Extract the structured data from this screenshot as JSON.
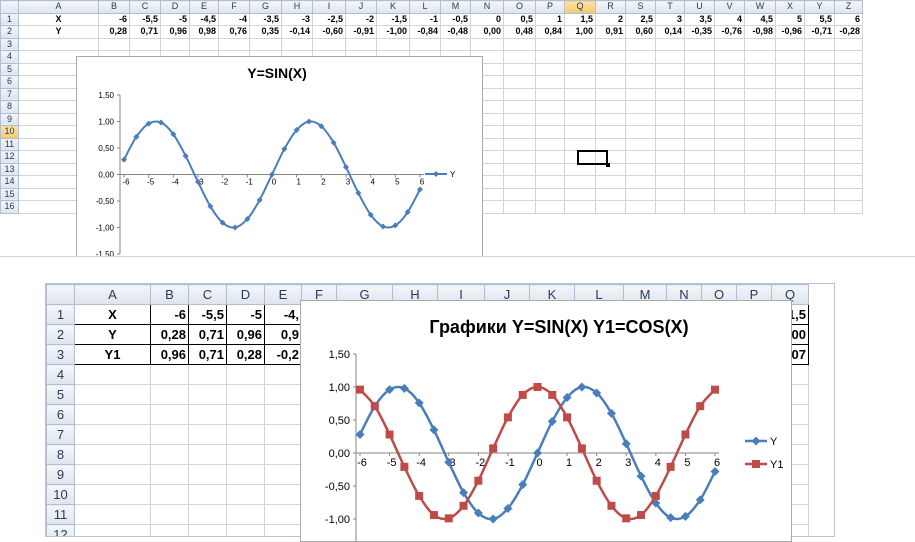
{
  "sheet1": {
    "columns": [
      "A",
      "B",
      "C",
      "D",
      "E",
      "F",
      "G",
      "H",
      "I",
      "J",
      "K",
      "L",
      "M",
      "N",
      "O",
      "P",
      "Q",
      "R",
      "S",
      "T",
      "U",
      "V",
      "W",
      "X",
      "Y",
      "Z"
    ],
    "selected_column": "Q",
    "selected_row": "10",
    "rows": [
      "1",
      "2",
      "3",
      "4",
      "5",
      "6",
      "7",
      "8",
      "9",
      "10",
      "11",
      "12",
      "13",
      "14",
      "15",
      "16"
    ],
    "cells": [
      [
        "X",
        "-6",
        "-5,5",
        "-5",
        "-4,5",
        "-4",
        "-3,5",
        "-3",
        "-2,5",
        "-2",
        "-1,5",
        "-1",
        "-0,5",
        "0",
        "0,5",
        "1",
        "1,5",
        "2",
        "2,5",
        "3",
        "3,5",
        "4",
        "4,5",
        "5",
        "5,5",
        "6"
      ],
      [
        "Y",
        "0,28",
        "0,71",
        "0,96",
        "0,98",
        "0,76",
        "0,35",
        "-0,14",
        "-0,60",
        "-0,91",
        "-1,00",
        "-0,84",
        "-0,48",
        "0,00",
        "0,48",
        "0,84",
        "1,00",
        "0,91",
        "0,60",
        "0,14",
        "-0,35",
        "-0,76",
        "-0,98",
        "-0,96",
        "-0,71",
        "-0,28"
      ]
    ]
  },
  "sheet2": {
    "columns": [
      "A",
      "B",
      "C",
      "D",
      "E",
      "F",
      "G",
      "H",
      "I",
      "J",
      "K",
      "L",
      "M",
      "N",
      "O",
      "P",
      "Q"
    ],
    "rows": [
      "1",
      "2",
      "3",
      "4",
      "5",
      "6",
      "7",
      "8",
      "9",
      "10",
      "11",
      "12"
    ],
    "cells": [
      [
        "X",
        "-6",
        "-5,5",
        "-5",
        "-4,"
      ],
      [
        "Y",
        "0,28",
        "0,71",
        "0,96",
        "0,9"
      ],
      [
        "Y1",
        "0,96",
        "0,71",
        "0,28",
        "-0,2"
      ]
    ],
    "col_q": [
      "1,5",
      ",00",
      ",07"
    ]
  },
  "chart_data": [
    {
      "type": "line",
      "title": "Y=SIN(X)",
      "x": [
        -6,
        -5.5,
        -5,
        -4.5,
        -4,
        -3.5,
        -3,
        -2.5,
        -2,
        -1.5,
        -1,
        -0.5,
        0,
        0.5,
        1,
        1.5,
        2,
        2.5,
        3,
        3.5,
        4,
        4.5,
        5,
        5.5,
        6
      ],
      "series": [
        {
          "name": "Y",
          "color": "#4a7ebb",
          "values": [
            0.28,
            0.71,
            0.96,
            0.98,
            0.76,
            0.35,
            -0.14,
            -0.6,
            -0.91,
            -1.0,
            -0.84,
            -0.48,
            0.0,
            0.48,
            0.84,
            1.0,
            0.91,
            0.6,
            0.14,
            -0.35,
            -0.76,
            -0.98,
            -0.96,
            -0.71,
            -0.28
          ]
        }
      ],
      "y_ticks": [
        "1,50",
        "1,00",
        "0,50",
        "0,00",
        "-0,50",
        "-1,00",
        "-1,50"
      ],
      "x_ticks": [
        "-6",
        "-5",
        "-4",
        "-3",
        "-2",
        "-1",
        "0",
        "1",
        "2",
        "3",
        "4",
        "5",
        "6"
      ],
      "ylim": [
        -1.5,
        1.5
      ],
      "legend": "right"
    },
    {
      "type": "line",
      "title": "Графики Y=SIN(X) Y1=COS(X)",
      "x": [
        -6,
        -5.5,
        -5,
        -4.5,
        -4,
        -3.5,
        -3,
        -2.5,
        -2,
        -1.5,
        -1,
        -0.5,
        0,
        0.5,
        1,
        1.5,
        2,
        2.5,
        3,
        3.5,
        4,
        4.5,
        5,
        5.5,
        6
      ],
      "series": [
        {
          "name": "Y",
          "color": "#4a7ebb",
          "values": [
            0.28,
            0.71,
            0.96,
            0.98,
            0.76,
            0.35,
            -0.14,
            -0.6,
            -0.91,
            -1.0,
            -0.84,
            -0.48,
            0.0,
            0.48,
            0.84,
            1.0,
            0.91,
            0.6,
            0.14,
            -0.35,
            -0.76,
            -0.98,
            -0.96,
            -0.71,
            -0.28
          ]
        },
        {
          "name": "Y1",
          "color": "#be4b48",
          "values": [
            0.96,
            0.71,
            0.28,
            -0.21,
            -0.65,
            -0.94,
            -0.99,
            -0.8,
            -0.42,
            0.07,
            0.54,
            0.88,
            1.0,
            0.88,
            0.54,
            0.07,
            -0.42,
            -0.8,
            -0.99,
            -0.94,
            -0.65,
            -0.21,
            0.28,
            0.71,
            0.96
          ]
        }
      ],
      "y_ticks": [
        "1,50",
        "1,00",
        "0,50",
        "0,00",
        "-0,50",
        "-1,00"
      ],
      "x_ticks": [
        "-6",
        "-5",
        "-4",
        "-3",
        "-2",
        "-1",
        "0",
        "1",
        "2",
        "3",
        "4",
        "5",
        "6"
      ],
      "ylim": [
        -1.5,
        1.5
      ],
      "legend": "right"
    }
  ]
}
